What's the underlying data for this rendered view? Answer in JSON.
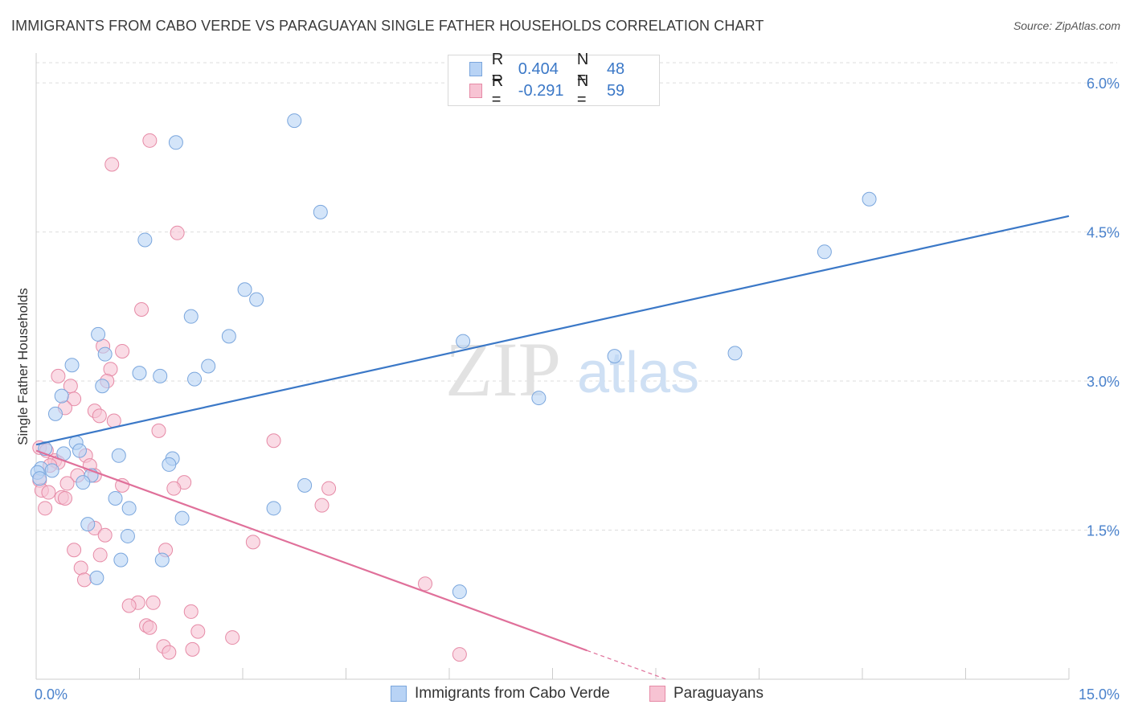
{
  "header": {
    "title": "IMMIGRANTS FROM CABO VERDE VS PARAGUAYAN SINGLE FATHER HOUSEHOLDS CORRELATION CHART",
    "source": "Source: ZipAtlas.com"
  },
  "watermark": {
    "zip": "ZIP",
    "atlas": "atlas"
  },
  "legend": {
    "blue": {
      "r_label": "R =",
      "r_value": "0.404",
      "n_label": "N =",
      "n_value": "48"
    },
    "pink": {
      "r_label": "R =",
      "r_value": "-0.291",
      "n_label": "N =",
      "n_value": "59"
    }
  },
  "bottom_legend": {
    "blue_label": "Immigrants from Cabo Verde",
    "pink_label": "Paraguayans"
  },
  "colors": {
    "blue_fill": "#b8d3f5",
    "blue_stroke": "#7aa6dd",
    "blue_line": "#3b78c7",
    "pink_fill": "#f7c3d3",
    "pink_stroke": "#e68aa6",
    "pink_line": "#e0709a",
    "grid": "#dddddd",
    "tick_label": "#4a82cc"
  },
  "chart_data": {
    "type": "scatter",
    "title": "IMMIGRANTS FROM CABO VERDE VS PARAGUAYAN SINGLE FATHER HOUSEHOLDS CORRELATION CHART",
    "xlabel": "",
    "ylabel": "Single Father Households",
    "xlim": [
      0,
      15
    ],
    "ylim": [
      0,
      6.3
    ],
    "x_tick_labels": [
      "0.0%",
      "15.0%"
    ],
    "y_ticks": [
      1.5,
      3.0,
      4.5,
      6.0
    ],
    "y_tick_labels": [
      "1.5%",
      "3.0%",
      "4.5%",
      "6.0%"
    ],
    "grid": true,
    "series": [
      {
        "name": "Immigrants from Cabo Verde",
        "color": "blue",
        "points": [
          [
            3.75,
            5.62
          ],
          [
            2.03,
            5.4
          ],
          [
            4.13,
            4.7
          ],
          [
            1.58,
            4.42
          ],
          [
            12.1,
            4.83
          ],
          [
            11.45,
            4.3
          ],
          [
            3.03,
            3.92
          ],
          [
            3.2,
            3.82
          ],
          [
            2.25,
            3.65
          ],
          [
            2.8,
            3.45
          ],
          [
            0.9,
            3.47
          ],
          [
            6.2,
            3.4
          ],
          [
            1.0,
            3.27
          ],
          [
            8.4,
            3.25
          ],
          [
            10.15,
            3.28
          ],
          [
            0.52,
            3.16
          ],
          [
            2.5,
            3.15
          ],
          [
            1.5,
            3.08
          ],
          [
            1.8,
            3.05
          ],
          [
            2.3,
            3.02
          ],
          [
            0.96,
            2.95
          ],
          [
            0.37,
            2.85
          ],
          [
            7.3,
            2.83
          ],
          [
            0.28,
            2.67
          ],
          [
            0.58,
            2.38
          ],
          [
            0.13,
            2.32
          ],
          [
            0.4,
            2.27
          ],
          [
            0.63,
            2.3
          ],
          [
            1.2,
            2.25
          ],
          [
            1.98,
            2.22
          ],
          [
            1.93,
            2.16
          ],
          [
            0.07,
            2.12
          ],
          [
            0.23,
            2.1
          ],
          [
            0.8,
            2.05
          ],
          [
            0.02,
            2.08
          ],
          [
            0.05,
            2.02
          ],
          [
            0.68,
            1.98
          ],
          [
            3.9,
            1.95
          ],
          [
            1.15,
            1.82
          ],
          [
            1.35,
            1.72
          ],
          [
            3.45,
            1.72
          ],
          [
            2.12,
            1.62
          ],
          [
            0.75,
            1.56
          ],
          [
            1.33,
            1.44
          ],
          [
            1.23,
            1.2
          ],
          [
            1.83,
            1.2
          ],
          [
            0.88,
            1.02
          ],
          [
            6.15,
            0.88
          ]
        ]
      },
      {
        "name": "Paraguayans",
        "color": "pink",
        "points": [
          [
            1.65,
            5.42
          ],
          [
            1.1,
            5.18
          ],
          [
            2.05,
            4.49
          ],
          [
            1.53,
            3.72
          ],
          [
            0.97,
            3.35
          ],
          [
            1.25,
            3.3
          ],
          [
            1.08,
            3.12
          ],
          [
            0.32,
            3.05
          ],
          [
            1.03,
            3.0
          ],
          [
            0.5,
            2.95
          ],
          [
            0.55,
            2.82
          ],
          [
            0.42,
            2.73
          ],
          [
            0.85,
            2.7
          ],
          [
            0.92,
            2.65
          ],
          [
            1.13,
            2.6
          ],
          [
            1.78,
            2.5
          ],
          [
            3.45,
            2.4
          ],
          [
            0.05,
            2.33
          ],
          [
            0.15,
            2.3
          ],
          [
            0.72,
            2.25
          ],
          [
            0.27,
            2.2
          ],
          [
            0.32,
            2.18
          ],
          [
            0.2,
            2.15
          ],
          [
            0.78,
            2.15
          ],
          [
            0.6,
            2.05
          ],
          [
            0.85,
            2.05
          ],
          [
            0.05,
            2.0
          ],
          [
            0.45,
            1.97
          ],
          [
            2.15,
            1.98
          ],
          [
            1.25,
            1.95
          ],
          [
            2.0,
            1.92
          ],
          [
            4.25,
            1.92
          ],
          [
            0.08,
            1.9
          ],
          [
            0.18,
            1.88
          ],
          [
            0.37,
            1.83
          ],
          [
            0.42,
            1.82
          ],
          [
            4.15,
            1.75
          ],
          [
            0.13,
            1.72
          ],
          [
            0.85,
            1.52
          ],
          [
            1.0,
            1.45
          ],
          [
            3.15,
            1.38
          ],
          [
            0.55,
            1.3
          ],
          [
            1.88,
            1.3
          ],
          [
            0.93,
            1.25
          ],
          [
            0.65,
            1.12
          ],
          [
            0.7,
            1.0
          ],
          [
            5.65,
            0.96
          ],
          [
            1.48,
            0.77
          ],
          [
            1.35,
            0.74
          ],
          [
            1.7,
            0.77
          ],
          [
            2.25,
            0.68
          ],
          [
            1.6,
            0.54
          ],
          [
            1.65,
            0.52
          ],
          [
            2.35,
            0.48
          ],
          [
            2.85,
            0.42
          ],
          [
            1.85,
            0.33
          ],
          [
            2.27,
            0.3
          ],
          [
            1.93,
            0.27
          ],
          [
            6.15,
            0.25
          ]
        ]
      }
    ],
    "trend_lines": [
      {
        "series": "Immigrants from Cabo Verde",
        "x0": 0.0,
        "y0": 2.36,
        "x1": 15.0,
        "y1": 4.66,
        "dashed_from": null
      },
      {
        "series": "Paraguayans",
        "x0": 0.0,
        "y0": 2.3,
        "x1": 9.15,
        "y1": 0.0,
        "dashed_from": 8.0
      }
    ]
  }
}
